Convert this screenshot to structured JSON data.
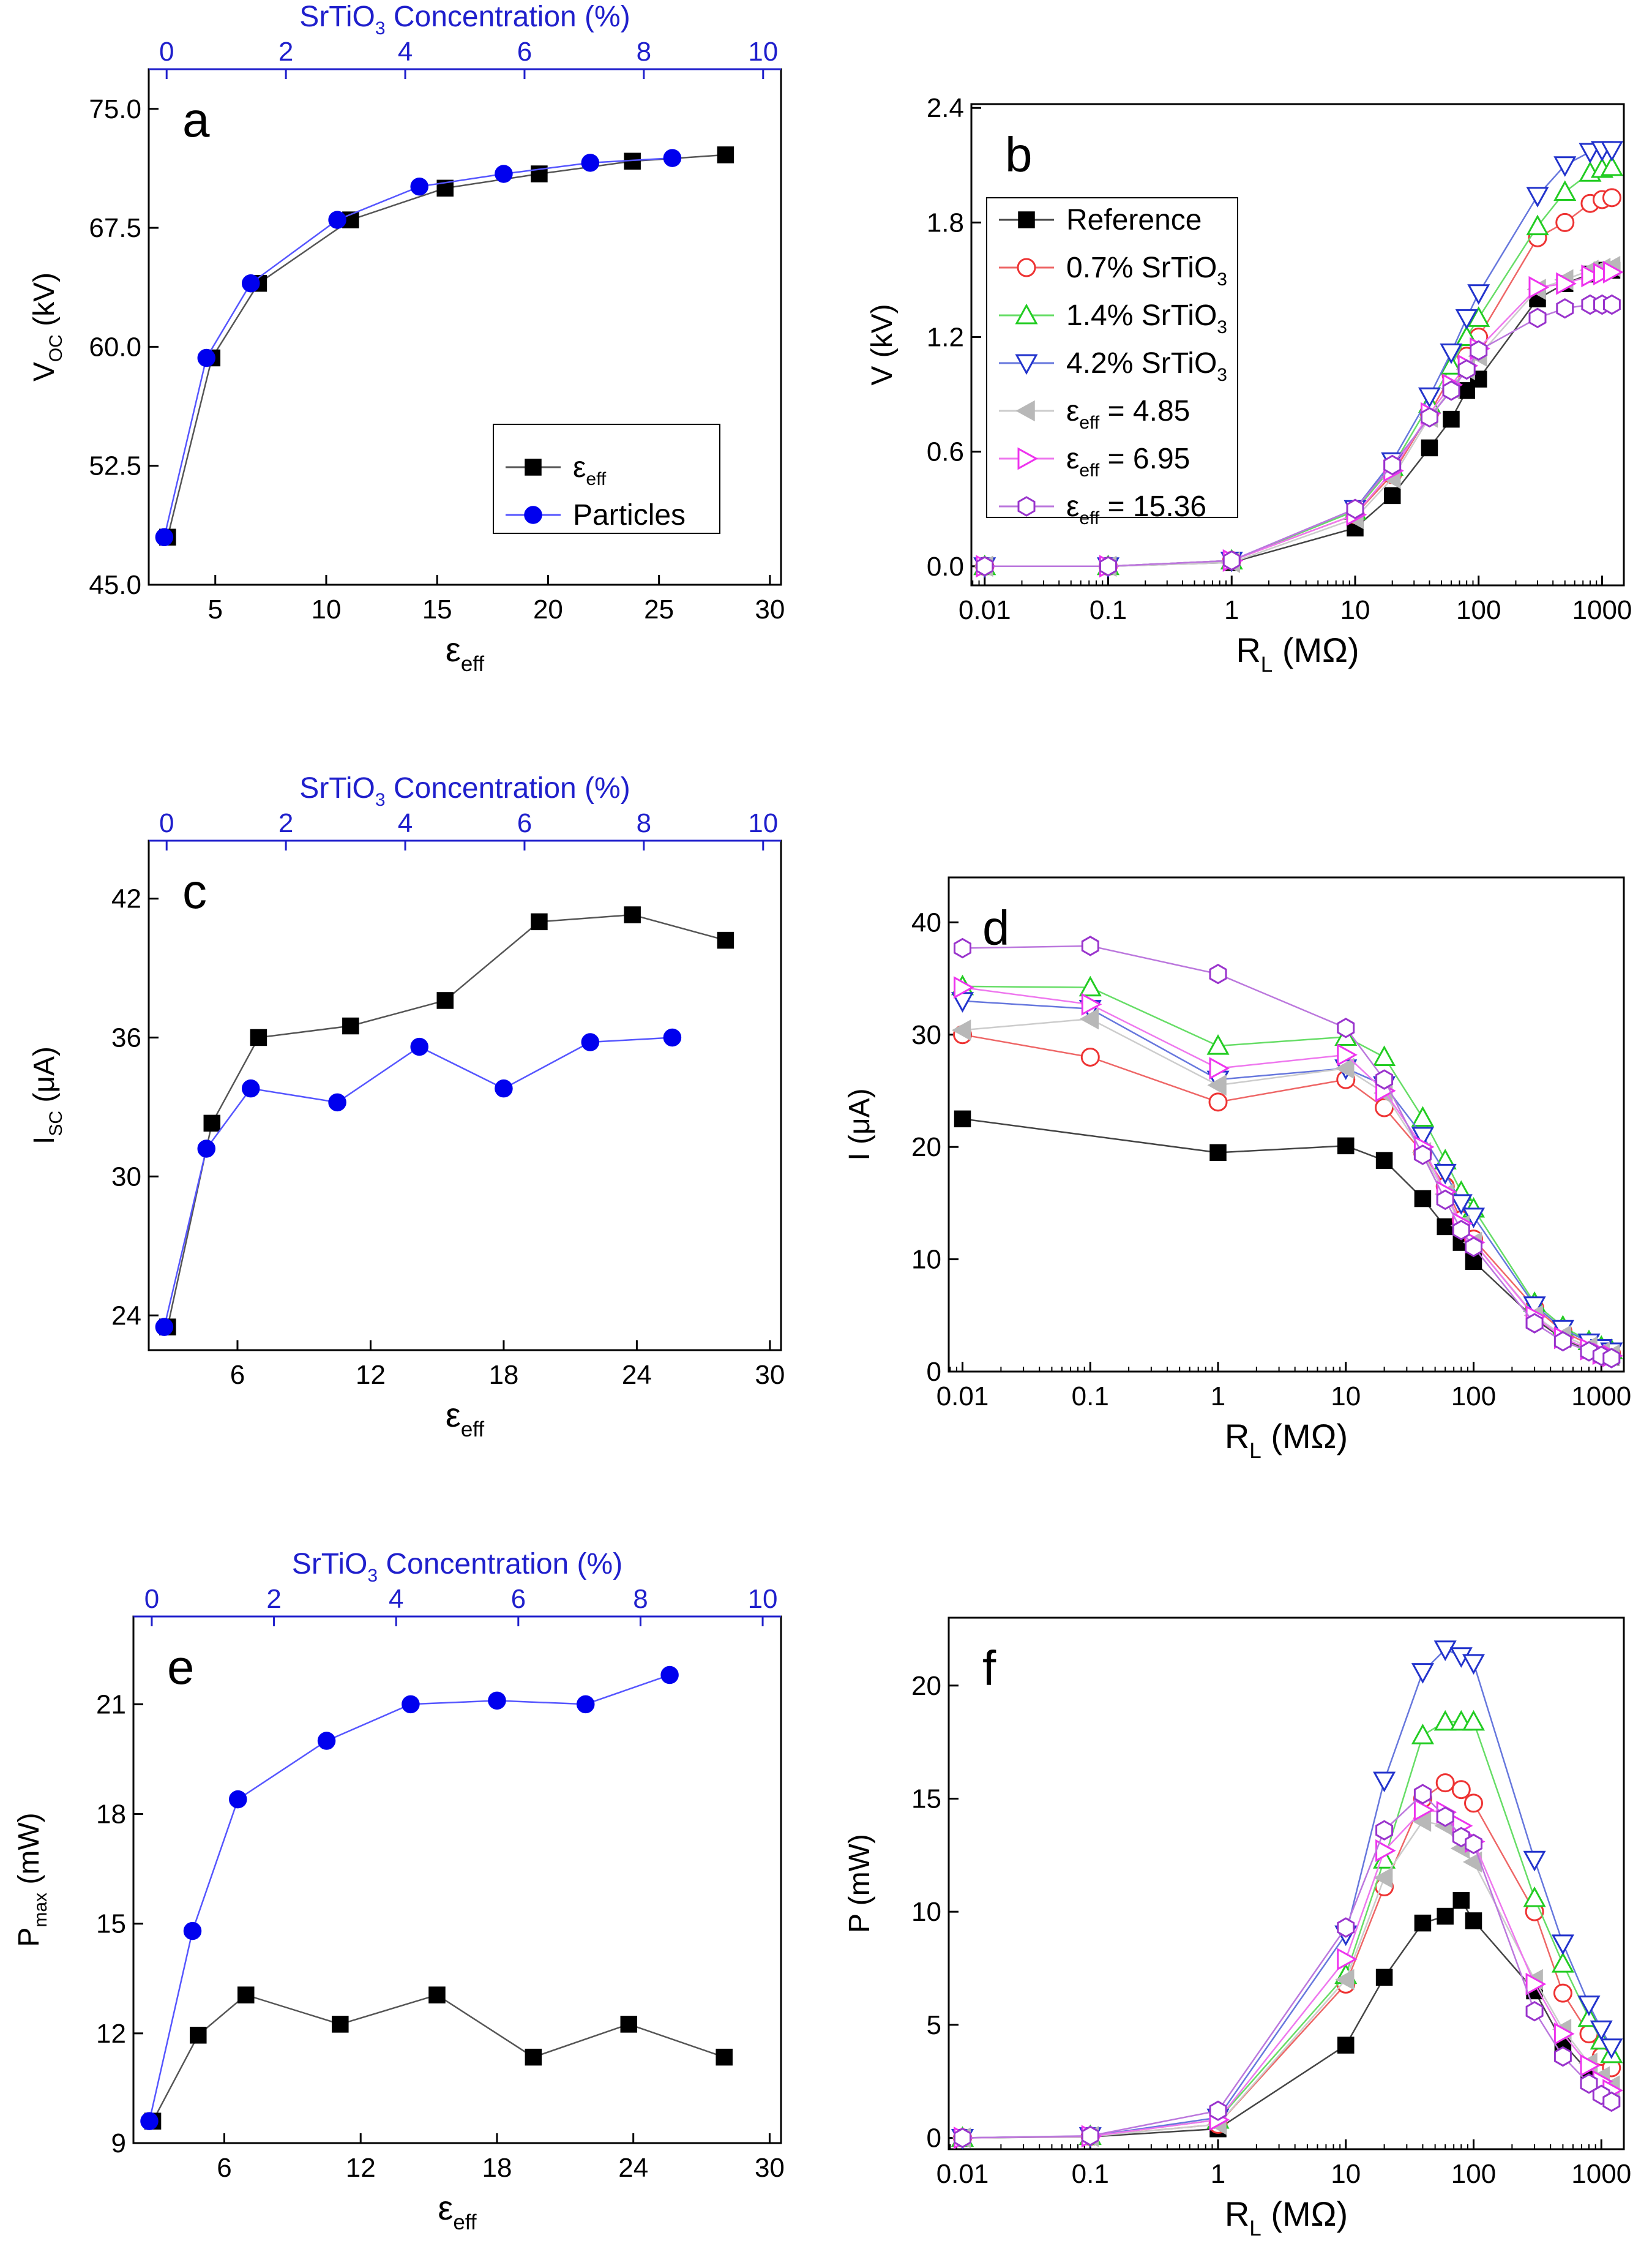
{
  "chart_data": [
    {
      "id": "a",
      "type": "scatter",
      "panel_label": "a",
      "ylabel": "V",
      "ylabel_sub": "OC",
      "ylabel_unit": " (kV)",
      "xlabel": "ε",
      "xlabel_sub": "eff",
      "top_label": "SrTiO",
      "top_label_sub": "3",
      "top_label_rest": " Concentration (%)",
      "x_scale": "linear",
      "xlim": [
        2,
        30.5
      ],
      "ylim": [
        45,
        77.5
      ],
      "xticks": [
        5,
        10,
        15,
        20,
        25,
        30
      ],
      "xticklabels": [
        "5",
        "10",
        "15",
        "20",
        "25",
        "30"
      ],
      "yticks": [
        45,
        52.5,
        60,
        67.5,
        75
      ],
      "yticklabels": [
        "45.0",
        "52.5",
        "60.0",
        "67.5",
        "75.0"
      ],
      "top_xlim": [
        -0.3,
        10.3
      ],
      "top_xticks": [
        0,
        2,
        4,
        6,
        8,
        10
      ],
      "top_xticklabels": [
        "0",
        "2",
        "4",
        "6",
        "8",
        "10"
      ],
      "legend": {
        "position": "bottom-right",
        "entries": [
          {
            "series": "εeff",
            "label": "ε",
            "label_sub": "eff"
          },
          {
            "series": "Particles",
            "label": "Particles"
          }
        ]
      },
      "series": [
        {
          "name": "εeff",
          "color": "#000000",
          "line_color": "#555555",
          "marker": "square",
          "x": [
            2.85,
            4.85,
            6.95,
            11.1,
            15.36,
            19.6,
            23.8,
            28.0
          ],
          "y": [
            48.0,
            59.3,
            64.0,
            68.0,
            70.0,
            70.9,
            71.7,
            72.1
          ]
        },
        {
          "name": "Particles",
          "color": "#0000ee",
          "line_color": "#5555ff",
          "marker": "circle",
          "x": [
            2.7,
            4.6,
            6.6,
            10.5,
            14.2,
            18.0,
            21.9,
            25.6
          ],
          "y": [
            48.0,
            59.3,
            64.0,
            68.0,
            70.1,
            70.9,
            71.6,
            71.9
          ]
        }
      ]
    },
    {
      "id": "b",
      "type": "line",
      "panel_label": "b",
      "ylabel": "V (kV)",
      "xlabel": "R",
      "xlabel_sub": "L",
      "xlabel_unit": " (MΩ)",
      "x_scale": "log",
      "xlim": [
        0.0078,
        1500
      ],
      "ylim": [
        -0.1,
        2.42
      ],
      "xticks": [
        0.01,
        0.1,
        1,
        10,
        100,
        1000
      ],
      "xticklabels": [
        "0.01",
        "0.1",
        "1",
        "10",
        "100",
        "1000"
      ],
      "yticks": [
        0,
        0.6,
        1.2,
        1.8,
        2.4
      ],
      "yticklabels": [
        "0.0",
        "0.6",
        "1.2",
        "1.8",
        "2.4"
      ],
      "legend": {
        "position": "top-left",
        "entries": [
          {
            "series": "Reference",
            "label": "Reference"
          },
          {
            "series": "0.7% SrTiO3",
            "label": "0.7% SrTiO",
            "label_sub": "3"
          },
          {
            "series": "1.4% SrTiO3",
            "label": "1.4% SrTiO",
            "label_sub": "3"
          },
          {
            "series": "4.2% SrTiO3",
            "label": "4.2% SrTiO",
            "label_sub": "3"
          },
          {
            "series": "εeff = 4.85",
            "label": "ε",
            "label_sub": "eff",
            "label_rest": " = 4.85"
          },
          {
            "series": "εeff = 6.95",
            "label": "ε",
            "label_sub": "eff",
            "label_rest": " = 6.95"
          },
          {
            "series": "εeff = 15.36",
            "label": "ε",
            "label_sub": "eff",
            "label_rest": " = 15.36"
          }
        ]
      },
      "x": [
        0.01,
        0.1,
        1,
        10,
        20,
        40,
        60,
        80,
        100,
        300,
        500,
        800,
        1000,
        1200
      ],
      "series": [
        {
          "name": "Reference",
          "color": "#000000",
          "line_color": "#444444",
          "marker": "square",
          "values": [
            0,
            0,
            0.02,
            0.2,
            0.37,
            0.62,
            0.77,
            0.92,
            0.98,
            1.4,
            1.48,
            1.53,
            1.55,
            1.55
          ]
        },
        {
          "name": "0.7% SrTiO3",
          "color": "#ee3333",
          "line_color": "#ee6666",
          "marker": "circle-open",
          "values": [
            0,
            0,
            0.03,
            0.27,
            0.48,
            0.8,
            1.0,
            1.1,
            1.2,
            1.72,
            1.8,
            1.9,
            1.92,
            1.93
          ]
        },
        {
          "name": "1.4% SrTiO3",
          "color": "#22cc22",
          "line_color": "#66dd66",
          "marker": "triangle-up-open",
          "values": [
            0,
            0,
            0.03,
            0.29,
            0.52,
            0.85,
            1.05,
            1.2,
            1.3,
            1.78,
            1.96,
            2.06,
            2.08,
            2.09
          ]
        },
        {
          "name": "4.2% SrTiO3",
          "color": "#2233cc",
          "line_color": "#6677dd",
          "marker": "triangle-down-open",
          "values": [
            0,
            0,
            0.03,
            0.3,
            0.55,
            0.89,
            1.12,
            1.3,
            1.43,
            1.94,
            2.1,
            2.17,
            2.18,
            2.18
          ]
        },
        {
          "name": "εeff = 4.85",
          "color": "#b8b8b8",
          "line_color": "#cccccc",
          "marker": "triangle-left",
          "values": [
            0,
            0,
            0.02,
            0.25,
            0.46,
            0.78,
            0.93,
            1.03,
            1.1,
            1.45,
            1.5,
            1.55,
            1.56,
            1.57
          ]
        },
        {
          "name": "εeff = 6.95",
          "color": "#ee33ee",
          "line_color": "#ee77ee",
          "marker": "triangle-right-open",
          "values": [
            0,
            0,
            0.03,
            0.27,
            0.5,
            0.8,
            0.95,
            1.05,
            1.14,
            1.46,
            1.48,
            1.52,
            1.53,
            1.54
          ]
        },
        {
          "name": "εeff = 15.36",
          "color": "#9933cc",
          "line_color": "#bb77dd",
          "marker": "hexagon-open",
          "values": [
            0,
            0,
            0.03,
            0.3,
            0.53,
            0.78,
            0.92,
            1.03,
            1.13,
            1.3,
            1.35,
            1.37,
            1.37,
            1.37
          ]
        }
      ]
    },
    {
      "id": "c",
      "type": "scatter",
      "panel_label": "c",
      "ylabel": "I",
      "ylabel_sub": "SC",
      "ylabel_unit": " (μA)",
      "xlabel": "ε",
      "xlabel_sub": "eff",
      "top_label": "SrTiO",
      "top_label_sub": "3",
      "top_label_rest": " Concentration (%)",
      "x_scale": "linear",
      "xlim": [
        2,
        30.5
      ],
      "ylim": [
        22.5,
        44.5
      ],
      "xticks": [
        6,
        12,
        18,
        24,
        30
      ],
      "xticklabels": [
        "6",
        "12",
        "18",
        "24",
        "30"
      ],
      "yticks": [
        24,
        30,
        36,
        42
      ],
      "yticklabels": [
        "24",
        "30",
        "36",
        "42"
      ],
      "top_xlim": [
        -0.3,
        10.3
      ],
      "top_xticks": [
        0,
        2,
        4,
        6,
        8,
        10
      ],
      "top_xticklabels": [
        "0",
        "2",
        "4",
        "6",
        "8",
        "10"
      ],
      "series": [
        {
          "name": "εeff",
          "color": "#000000",
          "line_color": "#555555",
          "marker": "square",
          "x": [
            2.85,
            4.85,
            6.95,
            11.1,
            15.36,
            19.6,
            23.8,
            28.0
          ],
          "y": [
            23.5,
            32.3,
            36.0,
            36.5,
            37.6,
            41.0,
            41.3,
            40.2
          ]
        },
        {
          "name": "Particles",
          "color": "#0000ee",
          "line_color": "#5555ff",
          "marker": "circle",
          "x": [
            2.7,
            4.6,
            6.6,
            10.5,
            14.2,
            18.0,
            21.9,
            25.6
          ],
          "y": [
            23.5,
            31.2,
            33.8,
            33.2,
            35.6,
            33.8,
            35.8,
            36.0
          ]
        }
      ]
    },
    {
      "id": "d",
      "type": "line",
      "panel_label": "d",
      "ylabel": "I (μA)",
      "xlabel": "R",
      "xlabel_sub": "L",
      "xlabel_unit": " (MΩ)",
      "x_scale": "log",
      "xlim": [
        0.0078,
        1500
      ],
      "ylim": [
        0,
        44
      ],
      "xticks": [
        0.01,
        0.1,
        1,
        10,
        100,
        1000
      ],
      "xticklabels": [
        "0.01",
        "0.1",
        "1",
        "10",
        "100",
        "1000"
      ],
      "yticks": [
        0,
        10,
        20,
        30,
        40
      ],
      "yticklabels": [
        "0",
        "10",
        "20",
        "30",
        "40"
      ],
      "x": [
        0.01,
        0.1,
        1,
        10,
        20,
        40,
        60,
        80,
        100,
        300,
        500,
        800,
        1000,
        1200
      ],
      "series": [
        {
          "name": "Reference",
          "color": "#000000",
          "line_color": "#444444",
          "marker": "square",
          "values": [
            22.5,
            null,
            19.5,
            20.1,
            18.8,
            15.4,
            12.9,
            11.5,
            9.8,
            4.7,
            2.9,
            1.9,
            1.5,
            1.3
          ]
        },
        {
          "name": "0.7% SrTiO3",
          "color": "#ee3333",
          "line_color": "#ee6666",
          "marker": "circle-open",
          "values": [
            30.0,
            28.0,
            24.0,
            26.0,
            23.5,
            19.5,
            16.5,
            13.5,
            11.8,
            5.7,
            3.6,
            2.4,
            1.9,
            1.6
          ]
        },
        {
          "name": "1.4% SrTiO3",
          "color": "#22cc22",
          "line_color": "#66dd66",
          "marker": "triangle-up-open",
          "values": [
            34.3,
            34.2,
            29.0,
            29.8,
            28.0,
            22.6,
            18.8,
            16.0,
            14.5,
            6.1,
            4.0,
            2.7,
            2.2,
            1.9
          ]
        },
        {
          "name": "4.2% SrTiO3",
          "color": "#2233cc",
          "line_color": "#6677dd",
          "marker": "triangle-down-open",
          "values": [
            33.0,
            32.3,
            26.0,
            27.0,
            25.5,
            21.0,
            17.7,
            15.0,
            13.8,
            5.9,
            3.8,
            2.6,
            2.1,
            1.8
          ]
        },
        {
          "name": "εeff = 4.85",
          "color": "#b8b8b8",
          "line_color": "#cccccc",
          "marker": "triangle-left",
          "values": [
            30.4,
            31.4,
            25.5,
            27.0,
            24.8,
            19.5,
            15.8,
            13.0,
            11.5,
            5.0,
            3.2,
            2.2,
            1.7,
            1.5
          ]
        },
        {
          "name": "εeff = 6.95",
          "color": "#ee33ee",
          "line_color": "#ee77ee",
          "marker": "triangle-right-open",
          "values": [
            34.2,
            32.7,
            27.0,
            28.2,
            25.0,
            20.0,
            16.0,
            13.2,
            11.5,
            4.9,
            3.0,
            2.0,
            1.6,
            1.4
          ]
        },
        {
          "name": "εeff = 15.36",
          "color": "#9933cc",
          "line_color": "#bb77dd",
          "marker": "hexagon-open",
          "values": [
            37.7,
            37.9,
            35.4,
            30.6,
            26.0,
            19.3,
            15.3,
            12.6,
            11.1,
            4.3,
            2.7,
            1.8,
            1.4,
            1.2
          ]
        }
      ]
    },
    {
      "id": "e",
      "type": "scatter",
      "panel_label": "e",
      "ylabel": "P",
      "ylabel_sub": "max",
      "ylabel_unit": " (mW)",
      "xlabel": "ε",
      "xlabel_sub": "eff",
      "top_label": "SrTiO",
      "top_label_sub": "3",
      "top_label_rest": " Concentration (%)",
      "x_scale": "linear",
      "xlim": [
        2,
        30.5
      ],
      "ylim": [
        9,
        23.4
      ],
      "xticks": [
        6,
        12,
        18,
        24,
        30
      ],
      "xticklabels": [
        "6",
        "12",
        "18",
        "24",
        "30"
      ],
      "yticks": [
        9,
        12,
        15,
        18,
        21
      ],
      "yticklabels": [
        "9",
        "12",
        "15",
        "18",
        "21"
      ],
      "top_xlim": [
        -0.3,
        10.3
      ],
      "top_xticks": [
        0,
        2,
        4,
        6,
        8,
        10
      ],
      "top_xticklabels": [
        "0",
        "2",
        "4",
        "6",
        "8",
        "10"
      ],
      "series": [
        {
          "name": "εeff",
          "color": "#000000",
          "line_color": "#555555",
          "marker": "square",
          "x": [
            2.85,
            4.85,
            6.95,
            11.1,
            15.36,
            19.6,
            23.8,
            28.0
          ],
          "y": [
            9.6,
            11.95,
            13.05,
            12.25,
            13.05,
            11.35,
            12.25,
            11.35
          ]
        },
        {
          "name": "Particles",
          "color": "#0000ee",
          "line_color": "#5555ff",
          "marker": "circle",
          "x": [
            2.7,
            4.6,
            6.6,
            10.5,
            14.2,
            18.0,
            21.9,
            25.6
          ],
          "y": [
            9.6,
            14.8,
            18.4,
            20.0,
            21.0,
            21.1,
            21.0,
            21.8
          ]
        }
      ]
    },
    {
      "id": "f",
      "type": "line",
      "panel_label": "f",
      "ylabel": "P (mW)",
      "xlabel": "R",
      "xlabel_sub": "L",
      "xlabel_unit": " (MΩ)",
      "x_scale": "log",
      "xlim": [
        0.0078,
        1500
      ],
      "ylim": [
        -0.5,
        23
      ],
      "xticks": [
        0.01,
        0.1,
        1,
        10,
        100,
        1000
      ],
      "xticklabels": [
        "0.01",
        "0.1",
        "1",
        "10",
        "100",
        "1000"
      ],
      "yticks": [
        0,
        5,
        10,
        15,
        20
      ],
      "yticklabels": [
        "0",
        "5",
        "10",
        "15",
        "20"
      ],
      "x": [
        0.01,
        0.1,
        1,
        10,
        20,
        40,
        60,
        80,
        100,
        300,
        500,
        800,
        1000,
        1200
      ],
      "series": [
        {
          "name": "Reference",
          "color": "#000000",
          "line_color": "#444444",
          "marker": "square",
          "values": [
            0,
            0.05,
            0.4,
            4.1,
            7.1,
            9.5,
            9.8,
            10.5,
            9.6,
            6.5,
            4.2,
            2.9,
            2.3,
            2.0
          ]
        },
        {
          "name": "0.7% SrTiO3",
          "color": "#ee3333",
          "line_color": "#ee6666",
          "marker": "circle-open",
          "values": [
            0,
            0.07,
            0.6,
            6.8,
            11.1,
            15.0,
            15.7,
            15.4,
            14.8,
            10.0,
            6.4,
            4.6,
            3.6,
            3.1
          ]
        },
        {
          "name": "1.4% SrTiO3",
          "color": "#22cc22",
          "line_color": "#66dd66",
          "marker": "triangle-up-open",
          "values": [
            0,
            0.08,
            0.8,
            7.2,
            12.3,
            17.8,
            18.4,
            18.4,
            18.4,
            10.6,
            7.7,
            5.3,
            4.3,
            3.7
          ]
        },
        {
          "name": "4.2% SrTiO3",
          "color": "#2233cc",
          "line_color": "#6677dd",
          "marker": "triangle-down-open",
          "values": [
            0,
            0.08,
            0.9,
            9.0,
            15.8,
            20.6,
            21.6,
            21.3,
            21.0,
            12.3,
            8.6,
            5.9,
            4.8,
            4.0
          ]
        },
        {
          "name": "εeff = 4.85",
          "color": "#b8b8b8",
          "line_color": "#cccccc",
          "marker": "triangle-left",
          "values": [
            0,
            0.06,
            0.6,
            7.0,
            11.5,
            14.0,
            13.8,
            12.8,
            12.2,
            7.0,
            4.8,
            3.3,
            2.7,
            2.3
          ]
        },
        {
          "name": "εeff = 6.95",
          "color": "#ee33ee",
          "line_color": "#ee77ee",
          "marker": "triangle-right-open",
          "values": [
            0,
            0.07,
            0.8,
            7.9,
            12.7,
            14.5,
            14.4,
            13.8,
            13.1,
            6.8,
            4.6,
            3.2,
            2.5,
            2.1
          ]
        },
        {
          "name": "εeff = 15.36",
          "color": "#9933cc",
          "line_color": "#bb77dd",
          "marker": "hexagon-open",
          "values": [
            0,
            0.09,
            1.2,
            9.3,
            13.6,
            15.2,
            14.2,
            13.3,
            13.0,
            5.6,
            3.6,
            2.4,
            1.9,
            1.6
          ]
        }
      ]
    }
  ]
}
